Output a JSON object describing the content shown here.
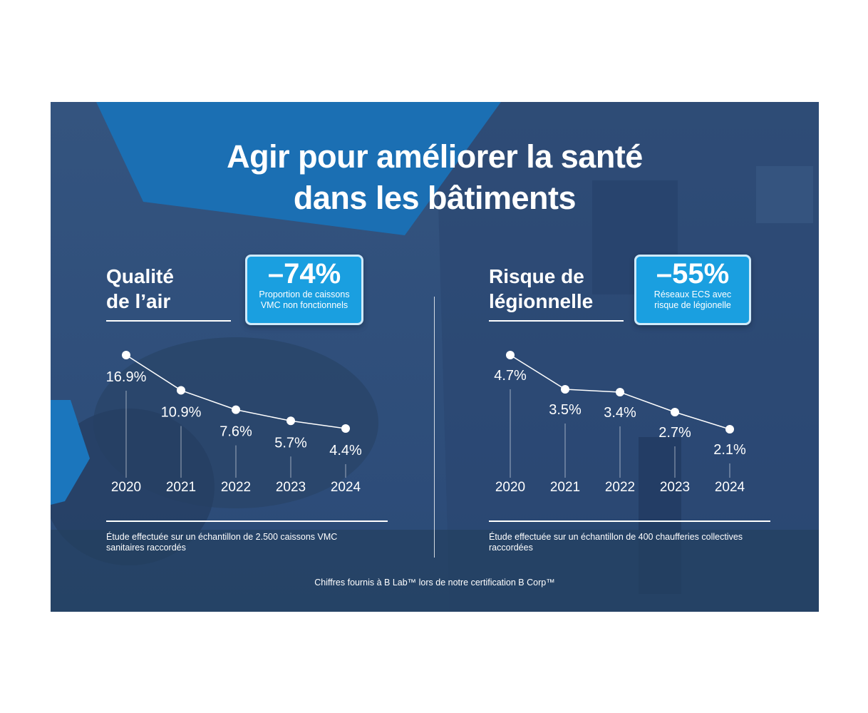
{
  "title": {
    "line1": "Agir pour améliorer la santé",
    "line2": "dans les bâtiments"
  },
  "colors": {
    "background": "#2f4f7f",
    "accent": "#1a9fe0",
    "badge_border": "#cfeafa",
    "text": "#ffffff"
  },
  "sections": {
    "air": {
      "title_line1": "Qualité",
      "title_line2": "de l’air",
      "badge_value": "–74%",
      "badge_desc_line1": "Proportion de caissons",
      "badge_desc_line2": "VMC non fonctionnels",
      "note_line1": "Étude effectuée sur un échantillon de 2.500 caissons VMC",
      "note_line2": "sanitaires raccordés"
    },
    "legionella": {
      "title_line1": "Risque de",
      "title_line2": "légionnelle",
      "badge_value": "–55%",
      "badge_desc_line1": "Réseaux ECS avec",
      "badge_desc_line2": "risque de légionelle",
      "note_line1": "Étude effectuée sur un échantillon de 400 chaufferies collectives",
      "note_line2": "raccordées"
    }
  },
  "footer": "Chiffres fournis à B Lab™ lors de notre certification B Corp™",
  "chart_data": [
    {
      "type": "line",
      "x": [
        "2020",
        "2021",
        "2022",
        "2023",
        "2024"
      ],
      "values": [
        16.9,
        10.9,
        7.6,
        5.7,
        4.4
      ],
      "labels": [
        "16.9%",
        "10.9%",
        "7.6%",
        "5.7%",
        "4.4%"
      ],
      "grid": false
    },
    {
      "type": "line",
      "x": [
        "2020",
        "2021",
        "2022",
        "2023",
        "2024"
      ],
      "values": [
        4.7,
        3.5,
        3.4,
        2.7,
        2.1
      ],
      "labels": [
        "4.7%",
        "3.5%",
        "3.4%",
        "2.7%",
        "2.1%"
      ],
      "grid": false
    }
  ]
}
